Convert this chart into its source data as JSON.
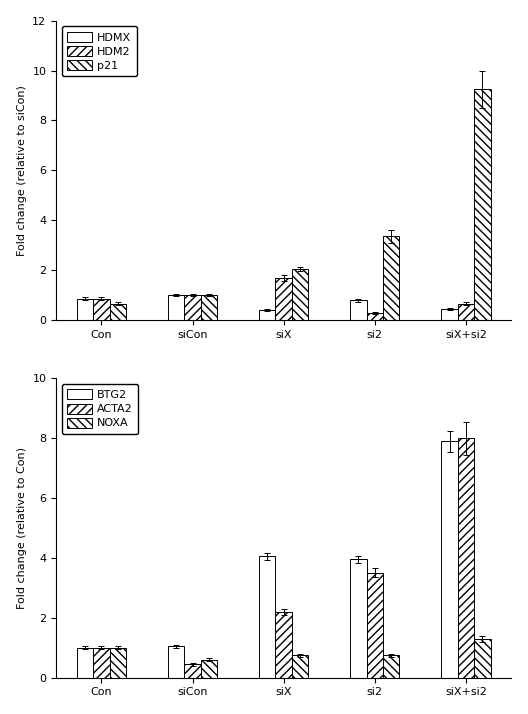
{
  "top": {
    "categories": [
      "Con",
      "siCon",
      "siX",
      "si2",
      "siX+si2"
    ],
    "ylabel": "Fold change (relative to siCon)",
    "ylim": [
      0,
      12
    ],
    "yticks": [
      0,
      2,
      4,
      6,
      8,
      10,
      12
    ],
    "legend_labels": [
      "HDMX",
      "HDM2",
      "p21"
    ],
    "values": {
      "HDMX": [
        0.85,
        1.0,
        0.38,
        0.78,
        0.42
      ],
      "HDM2": [
        0.85,
        1.0,
        1.7,
        0.28,
        0.65
      ],
      "p21": [
        0.65,
        1.0,
        2.05,
        3.35,
        9.25
      ]
    },
    "errors": {
      "HDMX": [
        0.05,
        0.05,
        0.04,
        0.05,
        0.04
      ],
      "HDM2": [
        0.05,
        0.05,
        0.12,
        0.05,
        0.05
      ],
      "p21": [
        0.05,
        0.05,
        0.08,
        0.25,
        0.75
      ]
    }
  },
  "bottom": {
    "categories": [
      "Con",
      "siCon",
      "siX",
      "si2",
      "siX+si2"
    ],
    "ylabel": "Fold change (relative to Con)",
    "ylim": [
      0,
      10
    ],
    "yticks": [
      0,
      2,
      4,
      6,
      8,
      10
    ],
    "legend_labels": [
      "BTG2",
      "ACTA2",
      "NOXA"
    ],
    "values": {
      "BTG2": [
        1.0,
        1.05,
        4.05,
        3.95,
        7.9
      ],
      "ACTA2": [
        1.0,
        0.45,
        2.2,
        3.5,
        8.0
      ],
      "NOXA": [
        1.0,
        0.6,
        0.75,
        0.75,
        1.3
      ]
    },
    "errors": {
      "BTG2": [
        0.05,
        0.05,
        0.12,
        0.12,
        0.35
      ],
      "ACTA2": [
        0.05,
        0.05,
        0.1,
        0.15,
        0.55
      ],
      "NOXA": [
        0.05,
        0.05,
        0.05,
        0.05,
        0.1
      ]
    }
  },
  "bar_width": 0.18,
  "hatch_styles": [
    "",
    "////",
    "\\\\\\\\"
  ],
  "facecolor": "white",
  "edgecolor": "black",
  "figsize": [
    5.28,
    7.14
  ],
  "dpi": 100,
  "label_fontsize": 8,
  "tick_fontsize": 8,
  "legend_fontsize": 8
}
